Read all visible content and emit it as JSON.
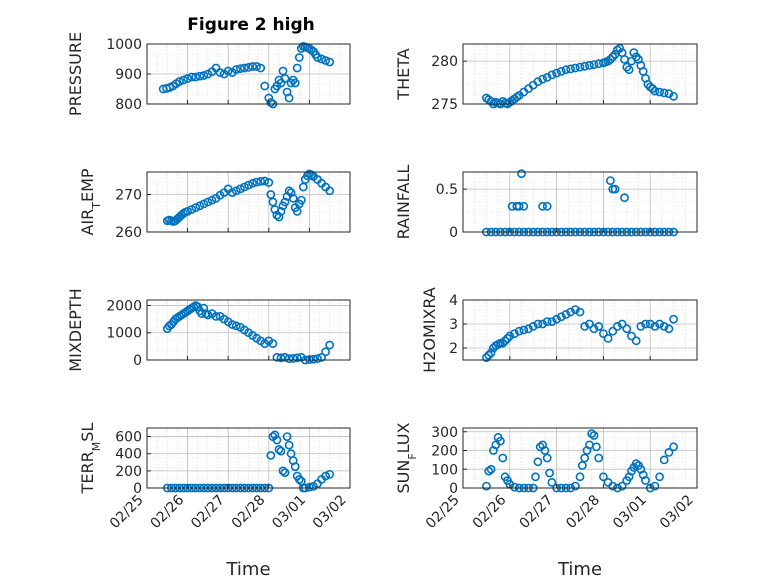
{
  "figure": {
    "title": "Figure 2 high",
    "marker_color": "#0072BD"
  },
  "chart_data": [
    {
      "type": "scatter",
      "ylabel": "PRESSURE",
      "xlabel": "",
      "x_ticks": [],
      "y_ticks": [
        800,
        900,
        1000
      ],
      "ylim": [
        800,
        1000
      ],
      "xlim": [
        0,
        5
      ],
      "grid": true,
      "x": [
        0.4,
        0.48,
        0.56,
        0.64,
        0.72,
        0.8,
        0.9,
        1.0,
        1.1,
        1.2,
        1.3,
        1.4,
        1.5,
        1.6,
        1.7,
        1.8,
        1.9,
        2.0,
        2.1,
        2.2,
        2.3,
        2.4,
        2.5,
        2.6,
        2.7,
        2.8,
        2.9,
        3.0,
        3.05,
        3.1,
        3.15,
        3.2,
        3.25,
        3.3,
        3.35,
        3.4,
        3.45,
        3.5,
        3.55,
        3.6,
        3.65,
        3.7,
        3.75,
        3.8,
        3.85,
        3.9,
        3.95,
        4.0,
        4.05,
        4.1,
        4.15,
        4.2,
        4.3,
        4.4,
        4.5
      ],
      "y": [
        850,
        852,
        855,
        860,
        868,
        875,
        880,
        885,
        890,
        890,
        893,
        895,
        900,
        908,
        920,
        905,
        900,
        910,
        905,
        915,
        918,
        920,
        922,
        925,
        925,
        920,
        860,
        820,
        805,
        800,
        850,
        860,
        880,
        870,
        910,
        885,
        840,
        820,
        870,
        880,
        870,
        920,
        955,
        985,
        992,
        990,
        988,
        985,
        980,
        975,
        965,
        955,
        950,
        945,
        940
      ]
    },
    {
      "type": "scatter",
      "ylabel": "THETA",
      "xlabel": "",
      "x_ticks": [],
      "y_ticks": [
        275,
        280
      ],
      "ylim": [
        275,
        282
      ],
      "xlim": [
        0,
        5
      ],
      "grid": true,
      "x": [
        0.5,
        0.55,
        0.6,
        0.65,
        0.7,
        0.75,
        0.8,
        0.85,
        0.9,
        0.95,
        1.0,
        1.05,
        1.1,
        1.15,
        1.2,
        1.3,
        1.4,
        1.5,
        1.6,
        1.7,
        1.8,
        1.9,
        2.0,
        2.1,
        2.2,
        2.3,
        2.4,
        2.5,
        2.6,
        2.7,
        2.8,
        2.9,
        3.0,
        3.05,
        3.1,
        3.15,
        3.2,
        3.25,
        3.3,
        3.35,
        3.4,
        3.45,
        3.5,
        3.55,
        3.6,
        3.65,
        3.7,
        3.75,
        3.8,
        3.85,
        3.9,
        3.95,
        4.0,
        4.05,
        4.1,
        4.2,
        4.3,
        4.4,
        4.5
      ],
      "y": [
        275.7,
        275.5,
        275.3,
        275.0,
        275.2,
        275.1,
        275.0,
        275.3,
        275.1,
        275.0,
        275.2,
        275.4,
        275.6,
        275.8,
        276.0,
        276.4,
        276.8,
        277.2,
        277.6,
        277.9,
        278.1,
        278.4,
        278.6,
        278.8,
        279.0,
        279.1,
        279.2,
        279.3,
        279.4,
        279.5,
        279.6,
        279.7,
        279.8,
        279.9,
        280.0,
        280.2,
        280.5,
        280.8,
        281.3,
        281.5,
        281.0,
        280.2,
        279.3,
        279.0,
        280.0,
        281.0,
        280.5,
        280.2,
        279.5,
        278.8,
        278.0,
        277.3,
        277.0,
        276.8,
        276.5,
        276.4,
        276.3,
        276.2,
        275.9
      ]
    },
    {
      "type": "scatter",
      "ylabel": "AIR_TEMP",
      "xlabel": "",
      "x_ticks": [],
      "y_ticks": [
        260,
        270
      ],
      "ylim": [
        260,
        276
      ],
      "xlim": [
        0,
        5
      ],
      "grid": true,
      "x": [
        0.5,
        0.55,
        0.6,
        0.65,
        0.7,
        0.75,
        0.8,
        0.85,
        0.9,
        0.95,
        1.0,
        1.1,
        1.2,
        1.3,
        1.4,
        1.5,
        1.6,
        1.7,
        1.8,
        1.9,
        2.0,
        2.1,
        2.2,
        2.3,
        2.4,
        2.5,
        2.6,
        2.7,
        2.8,
        2.9,
        3.0,
        3.05,
        3.1,
        3.15,
        3.2,
        3.25,
        3.3,
        3.35,
        3.4,
        3.45,
        3.5,
        3.55,
        3.6,
        3.65,
        3.7,
        3.75,
        3.8,
        3.85,
        3.9,
        3.95,
        4.0,
        4.05,
        4.1,
        4.2,
        4.3,
        4.4,
        4.5
      ],
      "y": [
        263.0,
        263.2,
        263.0,
        262.8,
        263.0,
        263.5,
        264.0,
        264.5,
        265.0,
        265.3,
        265.5,
        266.0,
        266.5,
        267.0,
        267.5,
        268.0,
        268.5,
        269.0,
        269.8,
        270.5,
        271.5,
        270.5,
        271.0,
        271.5,
        272.0,
        272.5,
        273.0,
        273.3,
        273.5,
        273.6,
        273.2,
        270.0,
        268.0,
        266.0,
        264.5,
        264.0,
        265.5,
        267.0,
        268.0,
        269.5,
        271.0,
        270.5,
        269.0,
        266.5,
        265.5,
        267.5,
        268.5,
        272.0,
        274.0,
        275.0,
        275.5,
        275.2,
        274.8,
        274.0,
        273.0,
        272.0,
        271.0
      ]
    },
    {
      "type": "scatter",
      "ylabel": "RAINFALL",
      "xlabel": "",
      "x_ticks": [],
      "y_ticks": [
        0,
        0.5
      ],
      "ylim": [
        0,
        0.7
      ],
      "xlim": [
        0,
        5
      ],
      "grid": true,
      "x": [
        0.5,
        0.6,
        0.7,
        0.8,
        0.9,
        1.0,
        1.1,
        1.2,
        1.3,
        1.4,
        1.5,
        1.6,
        1.7,
        1.8,
        1.9,
        2.0,
        2.1,
        2.2,
        2.3,
        2.4,
        2.5,
        2.6,
        2.7,
        2.8,
        2.9,
        3.0,
        3.1,
        3.2,
        3.3,
        3.4,
        3.5,
        3.6,
        3.7,
        3.8,
        3.9,
        4.0,
        4.1,
        4.2,
        4.3,
        4.4,
        4.5,
        1.05,
        1.15,
        1.2,
        1.3,
        1.7,
        1.8,
        1.25,
        3.15,
        3.2,
        3.25,
        3.45
      ],
      "y": [
        0,
        0,
        0,
        0,
        0,
        0,
        0,
        0,
        0,
        0,
        0,
        0,
        0,
        0,
        0,
        0,
        0,
        0,
        0,
        0,
        0,
        0,
        0,
        0,
        0,
        0,
        0,
        0,
        0,
        0,
        0,
        0,
        0,
        0,
        0,
        0,
        0,
        0,
        0,
        0,
        0,
        0.3,
        0.3,
        0.3,
        0.3,
        0.3,
        0.3,
        0.68,
        0.6,
        0.5,
        0.5,
        0.4
      ]
    },
    {
      "type": "scatter",
      "ylabel": "MIXDEPTH",
      "xlabel": "",
      "x_ticks": [],
      "y_ticks": [
        0,
        1000,
        2000
      ],
      "ylim": [
        0,
        2200
      ],
      "xlim": [
        0,
        5
      ],
      "grid": true,
      "x": [
        0.5,
        0.55,
        0.6,
        0.65,
        0.7,
        0.75,
        0.8,
        0.85,
        0.9,
        0.95,
        1.0,
        1.05,
        1.1,
        1.15,
        1.2,
        1.25,
        1.3,
        1.35,
        1.4,
        1.45,
        1.5,
        1.6,
        1.7,
        1.8,
        1.9,
        2.0,
        2.1,
        2.2,
        2.3,
        2.4,
        2.5,
        2.6,
        2.7,
        2.8,
        2.9,
        3.0,
        3.1,
        3.2,
        3.3,
        3.4,
        3.5,
        3.6,
        3.7,
        3.8,
        3.9,
        4.0,
        4.1,
        4.2,
        4.3,
        4.4,
        4.5
      ],
      "y": [
        1150,
        1250,
        1300,
        1400,
        1500,
        1550,
        1600,
        1650,
        1700,
        1750,
        1800,
        1850,
        1900,
        1950,
        2000,
        1950,
        1800,
        1700,
        1900,
        1700,
        1650,
        1700,
        1600,
        1600,
        1500,
        1400,
        1300,
        1250,
        1200,
        1100,
        1000,
        900,
        800,
        700,
        600,
        700,
        600,
        100,
        80,
        100,
        50,
        60,
        80,
        100,
        0,
        20,
        30,
        50,
        100,
        300,
        550
      ]
    },
    {
      "type": "scatter",
      "ylabel": "H2OMIXRA",
      "xlabel": "",
      "x_ticks": [],
      "y_ticks": [
        2,
        3,
        4
      ],
      "ylim": [
        1.5,
        4
      ],
      "xlim": [
        0,
        5
      ],
      "grid": true,
      "x": [
        0.5,
        0.55,
        0.6,
        0.65,
        0.7,
        0.75,
        0.8,
        0.85,
        0.9,
        0.95,
        1.0,
        1.1,
        1.2,
        1.3,
        1.4,
        1.5,
        1.6,
        1.7,
        1.8,
        1.9,
        2.0,
        2.1,
        2.2,
        2.3,
        2.4,
        2.5,
        2.6,
        2.7,
        2.8,
        2.9,
        3.0,
        3.1,
        3.2,
        3.3,
        3.4,
        3.5,
        3.6,
        3.7,
        3.8,
        3.9,
        4.0,
        4.1,
        4.2,
        4.3,
        4.4,
        4.5
      ],
      "y": [
        1.6,
        1.7,
        1.8,
        2.0,
        2.1,
        2.15,
        2.2,
        2.2,
        2.3,
        2.4,
        2.5,
        2.6,
        2.7,
        2.75,
        2.8,
        2.9,
        3.0,
        3.0,
        3.1,
        3.1,
        3.2,
        3.3,
        3.4,
        3.5,
        3.6,
        3.5,
        2.9,
        3.0,
        2.8,
        2.9,
        2.6,
        2.4,
        2.7,
        2.9,
        3.0,
        2.8,
        2.5,
        2.3,
        2.9,
        3.0,
        3.0,
        2.9,
        3.0,
        2.9,
        2.8,
        3.2
      ]
    },
    {
      "type": "scatter",
      "ylabel": "TERR_MSL",
      "xlabel": "Time",
      "x_ticks": [
        "02/25",
        "02/26",
        "02/27",
        "02/28",
        "03/01",
        "03/02"
      ],
      "y_ticks": [
        0,
        200,
        400,
        600
      ],
      "ylim": [
        0,
        700
      ],
      "xlim": [
        0,
        5
      ],
      "grid": true,
      "x": [
        0.5,
        0.6,
        0.7,
        0.8,
        0.9,
        1.0,
        1.1,
        1.2,
        1.3,
        1.4,
        1.5,
        1.6,
        1.7,
        1.8,
        1.9,
        2.0,
        2.1,
        2.2,
        2.3,
        2.4,
        2.5,
        2.6,
        2.7,
        2.8,
        2.9,
        3.0,
        3.05,
        3.1,
        3.15,
        3.2,
        3.25,
        3.3,
        3.35,
        3.4,
        3.45,
        3.5,
        3.55,
        3.6,
        3.65,
        3.7,
        3.75,
        3.8,
        3.85,
        3.9,
        4.0,
        4.1,
        4.2,
        4.3,
        4.4,
        4.5
      ],
      "y": [
        0,
        0,
        0,
        0,
        0,
        0,
        0,
        0,
        0,
        0,
        0,
        0,
        0,
        0,
        0,
        0,
        0,
        0,
        0,
        0,
        0,
        0,
        0,
        0,
        0,
        0,
        380,
        600,
        620,
        560,
        450,
        430,
        200,
        180,
        600,
        500,
        400,
        320,
        250,
        140,
        100,
        80,
        0,
        0,
        10,
        20,
        50,
        100,
        140,
        160
      ]
    },
    {
      "type": "scatter",
      "ylabel": "SUN_FLUX",
      "xlabel": "Time",
      "x_ticks": [
        "02/25",
        "02/26",
        "02/27",
        "02/28",
        "03/01",
        "03/02"
      ],
      "y_ticks": [
        0,
        100,
        200,
        300
      ],
      "ylim": [
        0,
        320
      ],
      "xlim": [
        0,
        5
      ],
      "grid": true,
      "x": [
        0.5,
        0.55,
        0.6,
        0.65,
        0.7,
        0.75,
        0.8,
        0.85,
        0.9,
        0.95,
        1.0,
        1.1,
        1.2,
        1.3,
        1.4,
        1.5,
        1.55,
        1.6,
        1.65,
        1.7,
        1.75,
        1.8,
        1.85,
        1.9,
        2.0,
        2.1,
        2.2,
        2.3,
        2.4,
        2.5,
        2.55,
        2.6,
        2.65,
        2.7,
        2.75,
        2.8,
        2.85,
        2.9,
        3.0,
        3.1,
        3.2,
        3.3,
        3.4,
        3.5,
        3.55,
        3.6,
        3.65,
        3.7,
        3.75,
        3.8,
        3.85,
        3.9,
        4.0,
        4.1,
        4.2,
        4.3,
        4.4,
        4.5
      ],
      "y": [
        10,
        90,
        100,
        200,
        230,
        270,
        250,
        160,
        60,
        40,
        20,
        5,
        0,
        0,
        0,
        0,
        60,
        140,
        220,
        230,
        200,
        160,
        80,
        30,
        0,
        0,
        0,
        0,
        10,
        60,
        120,
        160,
        200,
        230,
        290,
        280,
        220,
        160,
        60,
        30,
        10,
        0,
        10,
        40,
        60,
        90,
        110,
        130,
        120,
        100,
        70,
        40,
        0,
        10,
        60,
        150,
        190,
        220
      ]
    }
  ]
}
